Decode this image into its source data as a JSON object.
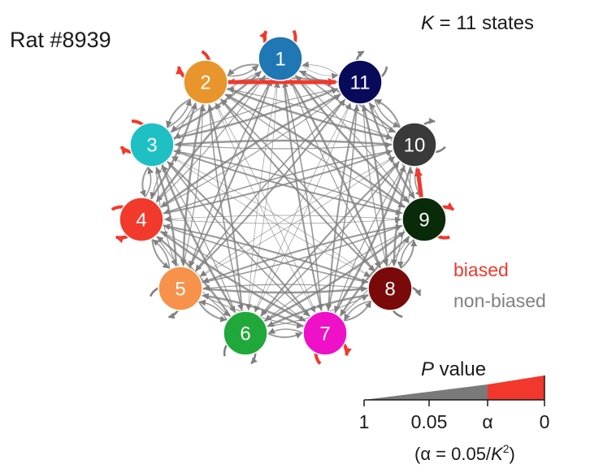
{
  "title": "Rat #8939",
  "k_label": {
    "k": "K",
    "rest": " = 11 states"
  },
  "nodes": [
    {
      "id": "1",
      "color": "#1f77b4"
    },
    {
      "id": "2",
      "color": "#e8952b"
    },
    {
      "id": "3",
      "color": "#1fc0c4"
    },
    {
      "id": "4",
      "color": "#f23a2c"
    },
    {
      "id": "5",
      "color": "#f7924a"
    },
    {
      "id": "6",
      "color": "#21a83a"
    },
    {
      "id": "7",
      "color": "#ee11c8"
    },
    {
      "id": "8",
      "color": "#7a0a0a"
    },
    {
      "id": "9",
      "color": "#0a2b0a"
    },
    {
      "id": "10",
      "color": "#3a3a3a"
    },
    {
      "id": "11",
      "color": "#0a0a5a"
    }
  ],
  "self_loops": {
    "biased": [
      "1",
      "2",
      "3",
      "4",
      "7",
      "9"
    ],
    "non_biased": [
      "5",
      "6",
      "8",
      "10",
      "11"
    ]
  },
  "biased_transitions": [
    [
      "2",
      "11"
    ],
    [
      "9",
      "10"
    ]
  ],
  "colors": {
    "biased": "#f2382c",
    "non_biased": "#808080"
  },
  "legend": {
    "biased": "biased",
    "non_biased": "non-biased"
  },
  "p_scale": {
    "title": "P",
    "title_rest": " value",
    "ticks": [
      "1",
      "0.05",
      "α",
      "0"
    ],
    "footnote_pre": "(α = 0.05/",
    "footnote_k": "K",
    "footnote_sup": "2",
    "footnote_post": ")"
  }
}
